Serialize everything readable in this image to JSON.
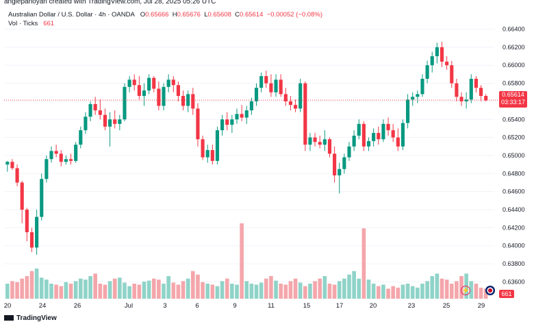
{
  "header": {
    "byline": "anglepanoyan created with TradingView.com, Jul 28, 2025 05:26 UTC"
  },
  "legend": {
    "symbol": "Australian Dollar / U.S. Dollar · 4h · OANDA",
    "o_label": "O",
    "o_value": "0.65666",
    "h_label": "H",
    "h_value": "0.65676",
    "l_label": "L",
    "l_value": "0.65608",
    "c_label": "C",
    "c_value": "0.65614",
    "change": "−0.00052 (−0.08%)",
    "vol_label": "Vol · Ticks",
    "vol_value": "661"
  },
  "price_tag": {
    "price": "0.65614",
    "countdown": "03:33:17",
    "color": "#f23645"
  },
  "volume_tag": {
    "value": "661"
  },
  "footer": {
    "brand": "TradingView"
  },
  "colors": {
    "up": "#089981",
    "down": "#f23645",
    "vol_up": "#8fd3c8",
    "vol_down": "#f4a6ab"
  },
  "chart_data": {
    "type": "candlestick",
    "y_axis_ticks": [
      "0.66400",
      "0.66200",
      "0.66000",
      "0.65800",
      "0.65600",
      "0.65400",
      "0.65200",
      "0.65000",
      "0.64800",
      "0.64600",
      "0.64400",
      "0.64200",
      "0.64000",
      "0.63800",
      "0.63600"
    ],
    "x_axis_ticks": [
      "20",
      "24",
      "26",
      "Jul",
      "3",
      "6",
      "9",
      "11",
      "15",
      "17",
      "20",
      "23",
      "25",
      "29"
    ],
    "ylim": [
      0.6355,
      0.6648
    ],
    "current_price": 0.65614,
    "candles": [
      [
        0.649,
        0.6494,
        0.6482,
        0.6493
      ],
      [
        0.6493,
        0.6496,
        0.6484,
        0.6486
      ],
      [
        0.6486,
        0.649,
        0.6466,
        0.647
      ],
      [
        0.647,
        0.6472,
        0.6425,
        0.644
      ],
      [
        0.644,
        0.6442,
        0.6405,
        0.6415
      ],
      [
        0.6415,
        0.642,
        0.6393,
        0.6398
      ],
      [
        0.6398,
        0.644,
        0.639,
        0.6432
      ],
      [
        0.6432,
        0.648,
        0.6428,
        0.6474
      ],
      [
        0.6474,
        0.65,
        0.647,
        0.6496
      ],
      [
        0.6496,
        0.651,
        0.6492,
        0.6505
      ],
      [
        0.6505,
        0.6512,
        0.6498,
        0.6502
      ],
      [
        0.6502,
        0.6506,
        0.6488,
        0.6493
      ],
      [
        0.6493,
        0.65,
        0.649,
        0.6496
      ],
      [
        0.6496,
        0.6502,
        0.649,
        0.6494
      ],
      [
        0.6494,
        0.6515,
        0.6492,
        0.6512
      ],
      [
        0.6512,
        0.6532,
        0.6508,
        0.6528
      ],
      [
        0.6528,
        0.6548,
        0.6524,
        0.6543
      ],
      [
        0.6543,
        0.656,
        0.6538,
        0.6557
      ],
      [
        0.6557,
        0.6565,
        0.6545,
        0.655
      ],
      [
        0.655,
        0.6562,
        0.654,
        0.6545
      ],
      [
        0.6545,
        0.6552,
        0.6528,
        0.6532
      ],
      [
        0.6532,
        0.6548,
        0.651,
        0.654
      ],
      [
        0.654,
        0.655,
        0.653,
        0.6535
      ],
      [
        0.6535,
        0.6545,
        0.6528,
        0.654
      ],
      [
        0.654,
        0.658,
        0.6538,
        0.6576
      ],
      [
        0.6576,
        0.6588,
        0.657,
        0.6584
      ],
      [
        0.6584,
        0.659,
        0.6572,
        0.6578
      ],
      [
        0.6578,
        0.6588,
        0.6562,
        0.6566
      ],
      [
        0.6566,
        0.658,
        0.6555,
        0.6572
      ],
      [
        0.6572,
        0.659,
        0.6568,
        0.6586
      ],
      [
        0.6586,
        0.6588,
        0.657,
        0.6574
      ],
      [
        0.6574,
        0.6582,
        0.655,
        0.6555
      ],
      [
        0.6555,
        0.658,
        0.655,
        0.6576
      ],
      [
        0.6576,
        0.659,
        0.657,
        0.6584
      ],
      [
        0.6584,
        0.6588,
        0.657,
        0.6578
      ],
      [
        0.6578,
        0.6582,
        0.656,
        0.6566
      ],
      [
        0.6566,
        0.6572,
        0.655,
        0.6555
      ],
      [
        0.6555,
        0.6572,
        0.6548,
        0.6568
      ],
      [
        0.6568,
        0.6575,
        0.6545,
        0.6552
      ],
      [
        0.6552,
        0.6558,
        0.651,
        0.6518
      ],
      [
        0.6518,
        0.6522,
        0.6495,
        0.6498
      ],
      [
        0.6498,
        0.6512,
        0.6492,
        0.6506
      ],
      [
        0.6506,
        0.6512,
        0.649,
        0.6494
      ],
      [
        0.6494,
        0.6532,
        0.649,
        0.6528
      ],
      [
        0.6528,
        0.6545,
        0.6522,
        0.654
      ],
      [
        0.654,
        0.6548,
        0.6528,
        0.6534
      ],
      [
        0.6534,
        0.6545,
        0.6525,
        0.654
      ],
      [
        0.654,
        0.6552,
        0.6535,
        0.6546
      ],
      [
        0.6546,
        0.6556,
        0.6538,
        0.6542
      ],
      [
        0.6542,
        0.6555,
        0.6535,
        0.655
      ],
      [
        0.655,
        0.6564,
        0.6545,
        0.656
      ],
      [
        0.656,
        0.658,
        0.6555,
        0.6575
      ],
      [
        0.6575,
        0.6592,
        0.657,
        0.6588
      ],
      [
        0.6588,
        0.6594,
        0.6575,
        0.658
      ],
      [
        0.658,
        0.659,
        0.6565,
        0.657
      ],
      [
        0.657,
        0.659,
        0.6565,
        0.6584
      ],
      [
        0.6584,
        0.659,
        0.6565,
        0.6568
      ],
      [
        0.6568,
        0.6575,
        0.6555,
        0.656
      ],
      [
        0.656,
        0.6566,
        0.655,
        0.6556
      ],
      [
        0.6556,
        0.6562,
        0.6548,
        0.6552
      ],
      [
        0.6552,
        0.6585,
        0.6548,
        0.658
      ],
      [
        0.658,
        0.6582,
        0.6505,
        0.6512
      ],
      [
        0.6512,
        0.6525,
        0.6505,
        0.652
      ],
      [
        0.652,
        0.6525,
        0.651,
        0.6515
      ],
      [
        0.6515,
        0.6522,
        0.6508,
        0.6512
      ],
      [
        0.6512,
        0.6528,
        0.6505,
        0.6518
      ],
      [
        0.6518,
        0.652,
        0.6498,
        0.6502
      ],
      [
        0.6502,
        0.651,
        0.647,
        0.6478
      ],
      [
        0.6478,
        0.6492,
        0.6458,
        0.6485
      ],
      [
        0.6485,
        0.6502,
        0.648,
        0.6498
      ],
      [
        0.6498,
        0.6515,
        0.6494,
        0.651
      ],
      [
        0.651,
        0.6528,
        0.6505,
        0.6522
      ],
      [
        0.6522,
        0.654,
        0.6518,
        0.6535
      ],
      [
        0.6535,
        0.6538,
        0.6505,
        0.651
      ],
      [
        0.651,
        0.652,
        0.6505,
        0.6516
      ],
      [
        0.6516,
        0.653,
        0.651,
        0.6525
      ],
      [
        0.6525,
        0.6532,
        0.6512,
        0.6518
      ],
      [
        0.6518,
        0.654,
        0.6515,
        0.6535
      ],
      [
        0.6535,
        0.6542,
        0.6522,
        0.6528
      ],
      [
        0.6528,
        0.6535,
        0.6515,
        0.652
      ],
      [
        0.652,
        0.653,
        0.6505,
        0.651
      ],
      [
        0.651,
        0.654,
        0.6506,
        0.6536
      ],
      [
        0.6536,
        0.6568,
        0.653,
        0.6562
      ],
      [
        0.6562,
        0.657,
        0.6555,
        0.6565
      ],
      [
        0.6565,
        0.6572,
        0.6558,
        0.6568
      ],
      [
        0.6568,
        0.659,
        0.6565,
        0.6585
      ],
      [
        0.6585,
        0.6605,
        0.658,
        0.66
      ],
      [
        0.66,
        0.6615,
        0.6592,
        0.661
      ],
      [
        0.661,
        0.6625,
        0.6602,
        0.662
      ],
      [
        0.662,
        0.6626,
        0.6598,
        0.6604
      ],
      [
        0.6604,
        0.661,
        0.6595,
        0.66
      ],
      [
        0.66,
        0.6605,
        0.6575,
        0.658
      ],
      [
        0.658,
        0.6585,
        0.656,
        0.6565
      ],
      [
        0.6565,
        0.657,
        0.6555,
        0.656
      ],
      [
        0.656,
        0.657,
        0.6552,
        0.6562
      ],
      [
        0.6562,
        0.659,
        0.6558,
        0.6585
      ],
      [
        0.6585,
        0.6588,
        0.657,
        0.6575
      ],
      [
        0.6575,
        0.6578,
        0.656,
        0.6566
      ],
      [
        0.6566,
        0.6568,
        0.656,
        0.6561
      ]
    ],
    "volumes": [
      0.3,
      0.35,
      0.33,
      0.4,
      0.45,
      0.55,
      0.6,
      0.42,
      0.38,
      0.3,
      0.28,
      0.25,
      0.33,
      0.3,
      0.35,
      0.4,
      0.38,
      0.45,
      0.5,
      0.3,
      0.28,
      0.35,
      0.4,
      0.42,
      0.32,
      0.25,
      0.3,
      0.28,
      0.34,
      0.36,
      0.4,
      0.38,
      0.3,
      0.45,
      0.32,
      0.28,
      0.35,
      0.4,
      0.55,
      0.48,
      0.33,
      0.3,
      0.28,
      0.25,
      0.35,
      0.4,
      0.3,
      0.28,
      1.5,
      0.35,
      0.3,
      0.28,
      0.32,
      0.4,
      0.45,
      0.36,
      0.3,
      0.28,
      0.35,
      0.4,
      0.32,
      0.25,
      0.3,
      0.35,
      0.4,
      0.45,
      0.3,
      0.28,
      0.35,
      0.4,
      0.48,
      0.55,
      0.4,
      1.4,
      0.38,
      0.3,
      0.25,
      0.28,
      0.2,
      0.25,
      0.22,
      0.28,
      0.3,
      0.25,
      0.22,
      0.3,
      0.35,
      0.45,
      0.5,
      0.4,
      0.38,
      0.3,
      0.35,
      0.45,
      0.5,
      0.35,
      0.3,
      0.22,
      0.2
    ]
  }
}
